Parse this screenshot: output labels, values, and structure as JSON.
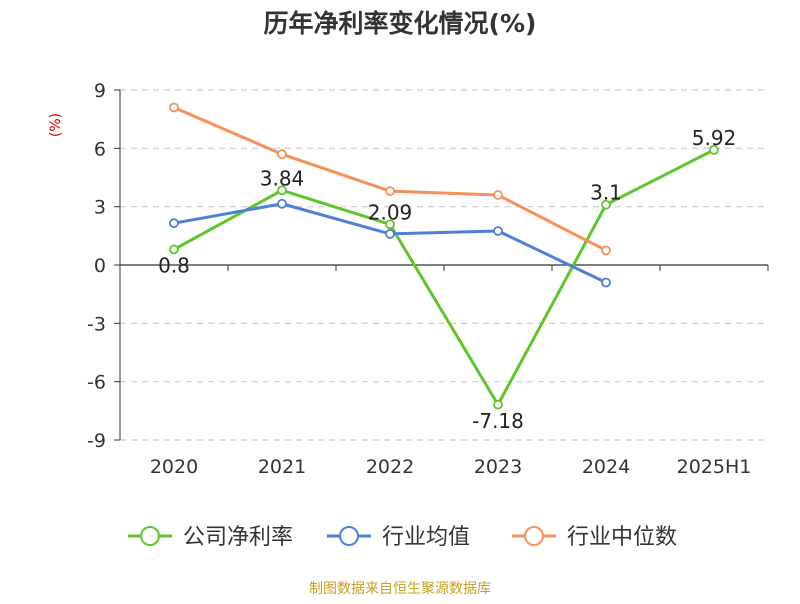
{
  "chart_data": {
    "type": "line",
    "title": "历年净利率变化情况(%)",
    "ylabel": "(%)",
    "xlabel": "",
    "categories": [
      "2020",
      "2021",
      "2022",
      "2023",
      "2024",
      "2025H1"
    ],
    "ylim": [
      -9,
      9
    ],
    "yticks": [
      9,
      6,
      3,
      0,
      -3,
      -6,
      -9
    ],
    "grid": true,
    "legend_position": "bottom",
    "series": [
      {
        "name": "公司净利率",
        "color": "#5dc62b",
        "values": [
          0.8,
          3.84,
          2.09,
          -7.18,
          3.1,
          5.92
        ],
        "data_labels": [
          "0.8",
          "3.84",
          "2.09",
          "-7.18",
          "3.1",
          "5.92"
        ]
      },
      {
        "name": "行业均值",
        "color": "#4f7fd8",
        "values": [
          2.15,
          3.15,
          1.6,
          1.75,
          -0.9,
          null
        ]
      },
      {
        "name": "行业中位数",
        "color": "#f8905a",
        "values": [
          8.1,
          5.7,
          3.8,
          3.6,
          0.75,
          null
        ]
      }
    ]
  },
  "footer": {
    "source_text": "制图数据来自恒生聚源数据库"
  }
}
